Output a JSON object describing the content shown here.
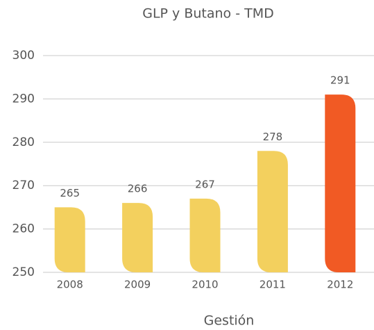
{
  "chart_data": {
    "type": "bar",
    "title": "GLP y Butano - TMD",
    "x_label": "Gestión",
    "categories": [
      "2008",
      "2009",
      "2010",
      "2011",
      "2012"
    ],
    "values": [
      265,
      266,
      267,
      278,
      291
    ],
    "colors": [
      "#f3d05e",
      "#f3d05e",
      "#f3d05e",
      "#f3d05e",
      "#f15a24"
    ],
    "ylim": [
      250,
      300
    ],
    "yticks": [
      250,
      260,
      270,
      280,
      290,
      300
    ],
    "grid": true
  }
}
